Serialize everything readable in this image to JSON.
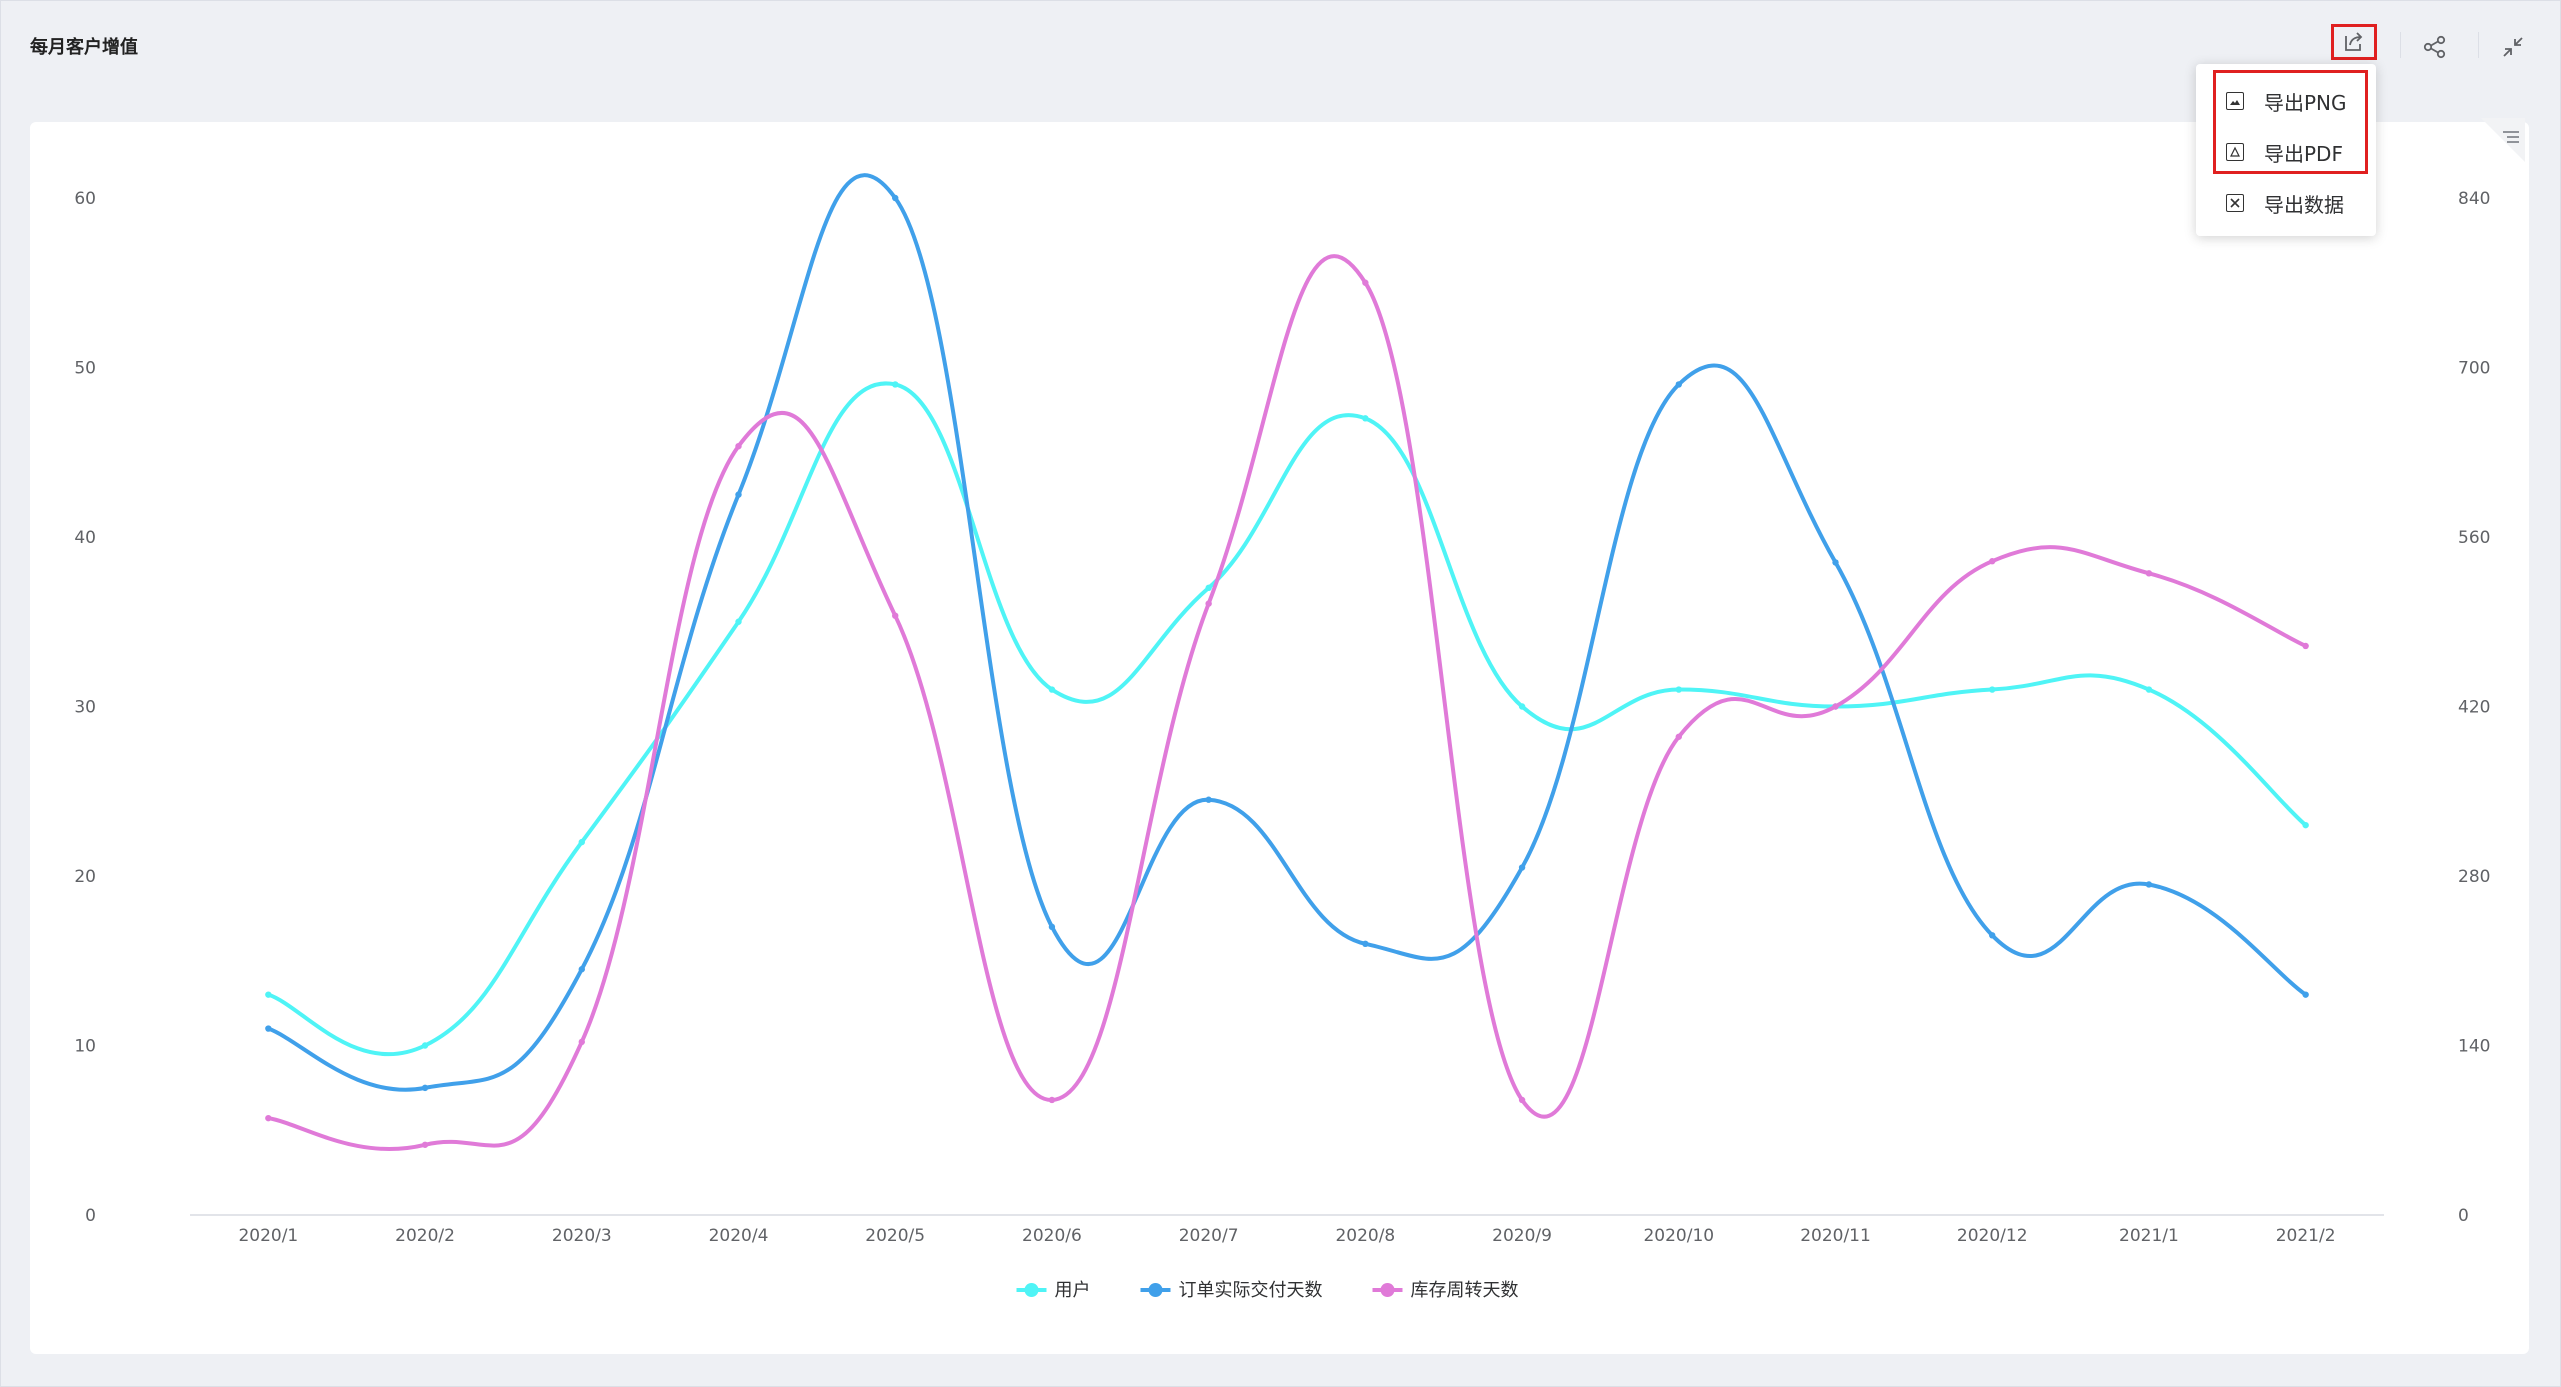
{
  "header": {
    "title": "每月客户增值"
  },
  "toolbar": {
    "export_icon": "export-icon",
    "share_icon": "share-icon",
    "collapse_icon": "collapse-icon"
  },
  "export_menu": {
    "items": [
      {
        "label": "导出PNG",
        "icon": "image-icon"
      },
      {
        "label": "导出PDF",
        "icon": "pdf-icon"
      },
      {
        "label": "导出数据",
        "icon": "excel-icon"
      }
    ]
  },
  "colors": {
    "series1": "#4ff4f6",
    "series2": "#40a0ea",
    "series3": "#e07ad8",
    "highlight": "#e02020"
  },
  "chart_data": {
    "type": "line",
    "smooth": true,
    "categories": [
      "2020/1",
      "2020/2",
      "2020/3",
      "2020/4",
      "2020/5",
      "2020/6",
      "2020/7",
      "2020/8",
      "2020/9",
      "2020/10",
      "2020/11",
      "2020/12",
      "2021/1",
      "2021/2"
    ],
    "y_left": {
      "min": 0,
      "max": 60,
      "ticks": [
        "0",
        "10",
        "20",
        "30",
        "40",
        "50",
        "60"
      ]
    },
    "y_right": {
      "min": 0,
      "max": 840,
      "ticks": [
        "0",
        "140",
        "280",
        "420",
        "560",
        "700",
        "840"
      ]
    },
    "series": [
      {
        "name": "用户",
        "axis": "left",
        "color": "#4ff4f6",
        "values": [
          13,
          10,
          22,
          35,
          49,
          31,
          37,
          47,
          30,
          31,
          30,
          31,
          31,
          23
        ]
      },
      {
        "name": "订单实际交付天数",
        "axis": "left",
        "color": "#40a0ea",
        "values": [
          11,
          7.5,
          14.5,
          42.5,
          60,
          17,
          24.5,
          16,
          20.5,
          49,
          38.5,
          16.5,
          19.5,
          13
        ]
      },
      {
        "name": "库存周转天数",
        "axis": "right",
        "color": "#e07ad8",
        "values": [
          80,
          58,
          143,
          635,
          495,
          95,
          505,
          770,
          95,
          395,
          420,
          540,
          530,
          470
        ]
      }
    ],
    "legend": {
      "position": "bottom-center",
      "items": [
        "用户",
        "订单实际交付天数",
        "库存周转天数"
      ]
    },
    "grid": false
  }
}
